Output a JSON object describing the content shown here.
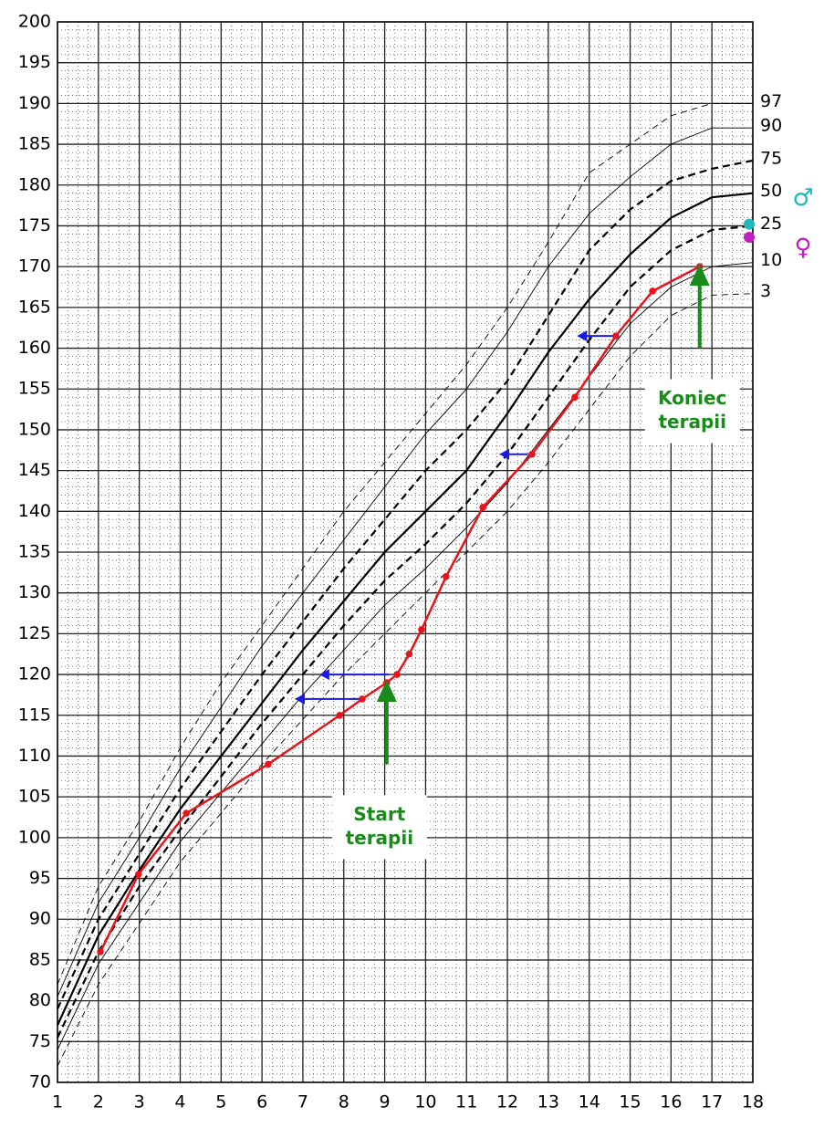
{
  "chart_data": {
    "type": "growth",
    "x": [
      1,
      2,
      3,
      4,
      5,
      6,
      7,
      8,
      9,
      10,
      11,
      12,
      13,
      14,
      15,
      16,
      17,
      18
    ],
    "xlim": [
      1,
      18
    ],
    "ylim": [
      70,
      200
    ],
    "xticks": [
      1,
      2,
      3,
      4,
      5,
      6,
      7,
      8,
      9,
      10,
      11,
      12,
      13,
      14,
      15,
      16,
      17,
      18
    ],
    "yticks": [
      70,
      75,
      80,
      85,
      90,
      95,
      100,
      105,
      110,
      115,
      120,
      125,
      130,
      135,
      140,
      145,
      150,
      155,
      160,
      165,
      170,
      175,
      180,
      185,
      190,
      195,
      200
    ],
    "grid": true,
    "series": [
      {
        "name": "97",
        "color": "#000000",
        "style": "thin-dashed",
        "values": [
          82,
          94,
          102,
          111,
          119,
          126,
          133,
          140,
          146,
          152,
          158,
          165,
          173,
          181.5,
          185,
          188.5,
          190,
          190
        ]
      },
      {
        "name": "90",
        "color": "#000000",
        "style": "thin",
        "values": [
          80.5,
          92,
          100,
          108.5,
          116,
          123.5,
          130,
          136.5,
          143,
          149.5,
          155,
          162,
          170,
          176.5,
          181,
          185,
          187,
          187
        ]
      },
      {
        "name": "75",
        "color": "#000000",
        "style": "thick-dashed",
        "values": [
          79,
          90,
          98,
          106,
          113,
          120,
          126.5,
          133,
          139,
          145,
          150,
          156,
          164,
          172,
          177,
          180.5,
          182,
          183
        ]
      },
      {
        "name": "50",
        "color": "#000000",
        "style": "thick",
        "values": [
          77,
          88,
          96,
          103.5,
          110,
          116.5,
          123,
          129,
          135,
          140,
          145,
          152,
          159.5,
          166,
          171.5,
          176,
          178.5,
          179
        ]
      },
      {
        "name": "25",
        "color": "#000000",
        "style": "thick-dashed",
        "values": [
          75.5,
          86,
          94,
          101,
          107.5,
          114,
          120,
          126,
          131.5,
          136,
          141,
          147,
          154,
          161,
          167.5,
          172,
          174.5,
          175
        ]
      },
      {
        "name": "10",
        "color": "#000000",
        "style": "thin",
        "values": [
          74,
          84.5,
          92,
          99.5,
          105.5,
          111.5,
          117.5,
          123,
          128.5,
          133,
          138,
          143.5,
          150,
          156.5,
          163,
          167.5,
          170,
          170.5
        ]
      },
      {
        "name": "3",
        "color": "#000000",
        "style": "thin-dashed",
        "values": [
          72,
          82,
          89.5,
          97,
          103,
          109,
          114.5,
          120,
          125,
          130,
          135,
          140,
          146,
          152.5,
          159,
          164,
          166.5,
          166.7
        ]
      }
    ],
    "patient": {
      "color": "#e8141c",
      "x": [
        2.05,
        2.98,
        4.15,
        6.15,
        7.9,
        8.45,
        9.05,
        9.3,
        9.6,
        9.9,
        10.5,
        11.4,
        12.6,
        13.65,
        14.65,
        15.55,
        16.7
      ],
      "values": [
        86,
        95.5,
        103,
        109,
        115,
        117,
        119,
        120,
        122.5,
        125.5,
        132,
        140.5,
        147,
        154,
        161.5,
        167,
        170
      ]
    },
    "bone_age": {
      "color": "#1a1ae6",
      "x_from": [
        8.4,
        9.1,
        12.5,
        14.6
      ],
      "x_to": [
        6.8,
        7.4,
        11.8,
        13.7
      ],
      "y": [
        117,
        120,
        147,
        161.5
      ]
    },
    "annotations": [
      {
        "lines": [
          "Start",
          "terapii"
        ],
        "color": "#1a8a1a",
        "x": 9.05,
        "y_from": 109,
        "y_to": 118
      },
      {
        "lines": [
          "Koniec",
          "terapii"
        ],
        "color": "#1a8a1a",
        "x": 16.7,
        "y_from": 160,
        "y_to": 169
      }
    ],
    "markers": [
      {
        "symbol": "♂",
        "color": "#20b8b8",
        "y": 175.2
      },
      {
        "symbol": "♀",
        "color": "#c020c0",
        "y": 173.6
      }
    ]
  }
}
